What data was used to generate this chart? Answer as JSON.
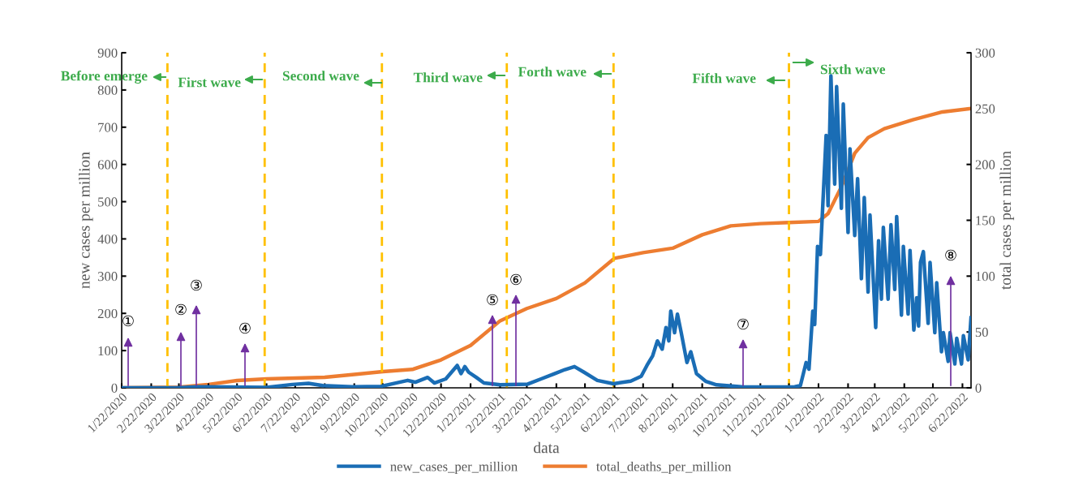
{
  "chart_data": {
    "type": "line",
    "xlabel": "data",
    "ylabel": "new cases per million",
    "y2label": "total cases per million",
    "xlim": [
      "2020-01-22",
      "2022-07-01"
    ],
    "xticks": [
      {
        "value": "2020-01-22",
        "label": "1/22/2020"
      },
      {
        "value": "2020-02-22",
        "label": "2/22/2020"
      },
      {
        "value": "2020-03-22",
        "label": "3/22/2020"
      },
      {
        "value": "2020-04-22",
        "label": "4/22/2020"
      },
      {
        "value": "2020-05-22",
        "label": "5/22/2020"
      },
      {
        "value": "2020-06-22",
        "label": "6/22/2020"
      },
      {
        "value": "2020-07-22",
        "label": "7/22/2020"
      },
      {
        "value": "2020-08-22",
        "label": "8/22/2020"
      },
      {
        "value": "2020-09-22",
        "label": "9/22/2020"
      },
      {
        "value": "2020-10-22",
        "label": "10/22/2020"
      },
      {
        "value": "2020-11-22",
        "label": "11/22/2020"
      },
      {
        "value": "2020-12-22",
        "label": "12/22/2020"
      },
      {
        "value": "2021-01-22",
        "label": "1/22/2021"
      },
      {
        "value": "2021-02-22",
        "label": "2/22/2021"
      },
      {
        "value": "2021-03-22",
        "label": "3/22/2021"
      },
      {
        "value": "2021-04-22",
        "label": "4/22/2021"
      },
      {
        "value": "2021-05-22",
        "label": "5/22/2021"
      },
      {
        "value": "2021-06-22",
        "label": "6/22/2021"
      },
      {
        "value": "2021-07-22",
        "label": "7/22/2021"
      },
      {
        "value": "2021-08-22",
        "label": "8/22/2021"
      },
      {
        "value": "2021-09-22",
        "label": "9/22/2021"
      },
      {
        "value": "2021-10-22",
        "label": "10/22/2021"
      },
      {
        "value": "2021-11-22",
        "label": "11/22/2021"
      },
      {
        "value": "2021-12-22",
        "label": "12/22/2021"
      },
      {
        "value": "2022-01-22",
        "label": "1/22/2022"
      },
      {
        "value": "2022-02-22",
        "label": "2/22/2022"
      },
      {
        "value": "2022-03-22",
        "label": "3/22/2022"
      },
      {
        "value": "2022-04-22",
        "label": "4/22/2022"
      },
      {
        "value": "2022-05-22",
        "label": "5/22/2022"
      },
      {
        "value": "2022-06-22",
        "label": "6/22/2022"
      }
    ],
    "ylim": [
      0,
      900
    ],
    "yticks": [
      0,
      100,
      200,
      300,
      400,
      500,
      600,
      700,
      800,
      900
    ],
    "y2lim": [
      0,
      300
    ],
    "y2ticks": [
      0,
      50,
      100,
      150,
      200,
      250,
      300
    ],
    "grid": false,
    "legend": "bottom",
    "marker": "none",
    "line_style": "solid",
    "series": [
      {
        "name": "new_cases_per_million",
        "color": "#1a6db5",
        "x": [
          "2020-01-22",
          "2020-03-20",
          "2020-04-10",
          "2020-06-22",
          "2020-07-19",
          "2020-08-05",
          "2020-08-20",
          "2020-09-20",
          "2020-10-20",
          "2020-11-17",
          "2020-11-25",
          "2020-12-08",
          "2020-12-15",
          "2020-12-27",
          "2021-01-08",
          "2021-01-12",
          "2021-01-16",
          "2021-01-20",
          "2021-01-28",
          "2021-02-05",
          "2021-02-22",
          "2021-03-23",
          "2021-04-06",
          "2021-04-20",
          "2021-05-01",
          "2021-05-11",
          "2021-05-21",
          "2021-06-04",
          "2021-06-21",
          "2021-07-09",
          "2021-07-20",
          "2021-07-26",
          "2021-08-01",
          "2021-08-06",
          "2021-08-11",
          "2021-08-15",
          "2021-08-18",
          "2021-08-20",
          "2021-08-24",
          "2021-08-27",
          "2021-08-31",
          "2021-09-06",
          "2021-09-10",
          "2021-09-16",
          "2021-09-26",
          "2021-10-07",
          "2021-11-05",
          "2021-12-03",
          "2021-12-28",
          "2022-01-03",
          "2022-01-09",
          "2022-01-12",
          "2022-01-16",
          "2022-01-18",
          "2022-01-21",
          "2022-01-24",
          "2022-01-30",
          "2022-02-01",
          "2022-02-04",
          "2022-02-08",
          "2022-02-10",
          "2022-02-15",
          "2022-02-17",
          "2022-02-22",
          "2022-02-24",
          "2022-03-01",
          "2022-03-04",
          "2022-03-08",
          "2022-03-11",
          "2022-03-15",
          "2022-03-17",
          "2022-03-23",
          "2022-03-26",
          "2022-03-29",
          "2022-03-31",
          "2022-04-05",
          "2022-04-08",
          "2022-04-12",
          "2022-04-14",
          "2022-04-19",
          "2022-04-21",
          "2022-04-26",
          "2022-04-28",
          "2022-05-02",
          "2022-05-05",
          "2022-05-07",
          "2022-05-09",
          "2022-05-12",
          "2022-05-17",
          "2022-05-19",
          "2022-05-24",
          "2022-05-26",
          "2022-05-31",
          "2022-06-02",
          "2022-06-07",
          "2022-06-09",
          "2022-06-14",
          "2022-06-16",
          "2022-06-21",
          "2022-06-23",
          "2022-06-28",
          "2022-07-01"
        ],
        "values": [
          0,
          0,
          3,
          1,
          9,
          12,
          6,
          3,
          4,
          20,
          15,
          28,
          13,
          24,
          60,
          38,
          57,
          42,
          28,
          13,
          8,
          10,
          24,
          38,
          49,
          57,
          42,
          20,
          11,
          18,
          31,
          60,
          86,
          126,
          104,
          162,
          126,
          206,
          148,
          198,
          148,
          68,
          97,
          38,
          17,
          8,
          2,
          2,
          3,
          6,
          68,
          50,
          206,
          170,
          380,
          358,
          678,
          489,
          838,
          547,
          809,
          482,
          762,
          417,
          642,
          409,
          562,
          293,
          511,
          257,
          464,
          162,
          395,
          238,
          431,
          238,
          438,
          264,
          460,
          195,
          380,
          198,
          369,
          155,
          242,
          166,
          337,
          366,
          173,
          337,
          148,
          282,
          97,
          148,
          71,
          148,
          64,
          133,
          64,
          140,
          75,
          188
        ]
      },
      {
        "name": "total_deaths_per_million",
        "color": "#ed7d31",
        "axis": "y2",
        "x": [
          "2020-01-22",
          "2020-03-22",
          "2020-04-22",
          "2020-05-22",
          "2020-06-22",
          "2020-08-22",
          "2020-09-22",
          "2020-10-22",
          "2020-11-22",
          "2020-12-22",
          "2021-01-22",
          "2021-02-22",
          "2021-03-22",
          "2021-04-22",
          "2021-05-22",
          "2021-06-22",
          "2021-07-22",
          "2021-08-22",
          "2021-09-22",
          "2021-10-22",
          "2021-11-22",
          "2021-12-22",
          "2022-01-22",
          "2022-02-01",
          "2022-02-15",
          "2022-03-01",
          "2022-03-15",
          "2022-04-01",
          "2022-05-01",
          "2022-06-01",
          "2022-07-01"
        ],
        "values": [
          0,
          0.5,
          3,
          6.5,
          8,
          9.5,
          12,
          14.5,
          16.5,
          25,
          38,
          60,
          71,
          80,
          94,
          116,
          121,
          125,
          137,
          145,
          147,
          148,
          149,
          156,
          180,
          210,
          224,
          232,
          240,
          247,
          250
        ]
      }
    ],
    "ref_lines": [
      {
        "axis": "x",
        "value": "2020-03-10",
        "color": "#ffc000",
        "line_style": "dashed"
      },
      {
        "axis": "x",
        "value": "2020-06-20",
        "color": "#ffc000",
        "line_style": "dashed"
      },
      {
        "axis": "x",
        "value": "2020-10-21",
        "color": "#ffc000",
        "line_style": "dashed"
      },
      {
        "axis": "x",
        "value": "2021-03-01",
        "color": "#ffc000",
        "line_style": "dashed"
      },
      {
        "axis": "x",
        "value": "2021-06-21",
        "color": "#ffc000",
        "line_style": "dashed"
      },
      {
        "axis": "x",
        "value": "2021-12-22",
        "color": "#ffc000",
        "line_style": "dashed"
      }
    ],
    "annotations": [
      "Before emerge",
      "First wave",
      "Second wave",
      "Third wave",
      "Forth wave",
      "Fifth wave",
      "Sixth wave",
      "①",
      "②",
      "③",
      "④",
      "⑤",
      "⑥",
      "⑦",
      "⑧"
    ]
  }
}
